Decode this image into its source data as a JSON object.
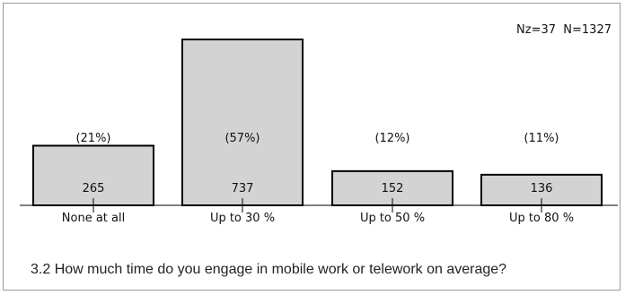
{
  "chart_data": {
    "type": "bar",
    "categories": [
      "None at all",
      "Up to 30 %",
      "Up to 50 %",
      "Up to 80 %"
    ],
    "values": [
      265,
      737,
      152,
      136
    ],
    "percent_labels": [
      "(21%)",
      "(57%)",
      "(12%)",
      "(11%)"
    ],
    "sample_info": "Nz=37  N=1327",
    "ylim": [
      0,
      737
    ],
    "grid": false,
    "bar_color": "#d3d3d3",
    "bar_edge_color": "#000000"
  },
  "question": "3.2 How much time do you engage in mobile work or telework on average?"
}
